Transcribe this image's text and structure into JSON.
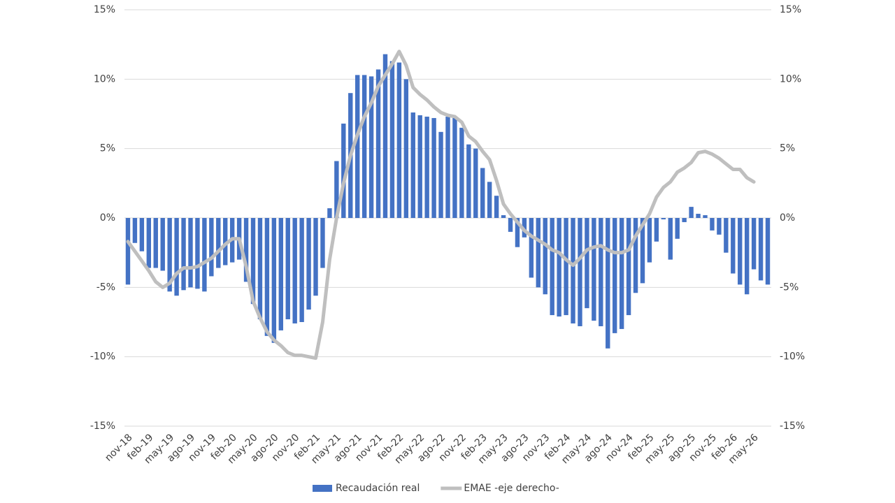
{
  "chart_data": {
    "type": "bar_line",
    "categories": [
      "nov-18",
      null,
      null,
      "feb-19",
      null,
      null,
      "may-19",
      null,
      null,
      "ago-19",
      null,
      null,
      "nov-19",
      null,
      null,
      "feb-20",
      null,
      null,
      "may-20",
      null,
      null,
      "ago-20",
      null,
      null,
      "nov-20",
      null,
      null,
      "feb-21",
      null,
      null,
      "may-21",
      null,
      null,
      "ago-21",
      null,
      null,
      "nov-21",
      null,
      null,
      "feb-22",
      null,
      null,
      "may-22",
      null,
      null,
      "ago-22",
      null,
      null,
      "nov-22",
      null,
      null,
      "feb-23",
      null,
      null,
      "may-23",
      null,
      null,
      "ago-23",
      null,
      null,
      "nov-23",
      null,
      null,
      "feb-24",
      null,
      null,
      "may-24",
      null,
      null,
      "ago-24",
      null,
      null,
      "nov-24",
      null,
      null,
      "feb-25",
      null,
      null,
      "may-25",
      null,
      null,
      "ago-25",
      null,
      null,
      "nov-25",
      null,
      null,
      "feb-26",
      null,
      null,
      "may-26",
      null,
      null
    ],
    "series": [
      {
        "name": "Recaudación real",
        "color": "#4472c4",
        "kind": "bar",
        "values": [
          -4.8,
          -1.8,
          -2.4,
          -3.6,
          -3.6,
          -3.8,
          -5.3,
          -5.6,
          -5.2,
          -5.0,
          -5.1,
          -5.3,
          -4.2,
          -3.6,
          -3.4,
          -3.2,
          -3.0,
          -4.6,
          -6.2,
          -7.3,
          -8.5,
          -9.0,
          -8.1,
          -7.3,
          -7.6,
          -7.5,
          -6.6,
          -5.6,
          -3.6,
          0.7,
          4.1,
          6.8,
          9.0,
          10.3,
          10.3,
          10.2,
          10.7,
          11.8,
          11.3,
          11.2,
          10.0,
          7.6,
          7.4,
          7.3,
          7.2,
          6.2,
          7.3,
          7.2,
          6.5,
          5.3,
          5.0,
          3.6,
          2.6,
          1.6,
          0.2,
          -1.0,
          -2.1,
          -1.4,
          -4.3,
          -5.0,
          -5.5,
          -7.0,
          -7.1,
          -7.0,
          -7.6,
          -7.8,
          -6.5,
          -7.4,
          -7.8,
          -9.4,
          -8.3,
          -8.0,
          -7.0,
          -5.4,
          -4.7,
          -3.2,
          -1.7,
          -0.1,
          -3.0,
          -1.5,
          -0.3,
          0.8,
          0.3,
          0.2,
          -0.9,
          -1.2,
          -2.5,
          -4.0,
          -4.8,
          -5.5,
          -3.7,
          -4.5,
          -4.8
        ]
      },
      {
        "name": "EMAE -eje derecho-",
        "color": "#bfbfbf",
        "kind": "line",
        "axis": "y2",
        "values": [
          -1.7,
          -2.4,
          -3.1,
          -3.8,
          -4.6,
          -5.0,
          -4.7,
          -4.0,
          -3.6,
          -3.6,
          -3.5,
          -3.2,
          -2.9,
          -2.4,
          -1.9,
          -1.5,
          -1.5,
          -3.5,
          -6.0,
          -7.2,
          -8.2,
          -8.8,
          -9.2,
          -9.7,
          -9.9,
          -9.9,
          -10.0,
          -10.1,
          -7.5,
          -3.0,
          0.0,
          2.5,
          4.5,
          6.0,
          7.3,
          8.3,
          9.5,
          10.3,
          11.1,
          12.0,
          11.0,
          9.4,
          8.9,
          8.5,
          8.0,
          7.6,
          7.4,
          7.3,
          6.9,
          5.9,
          5.5,
          4.8,
          4.2,
          2.7,
          1.0,
          0.3,
          -0.3,
          -0.9,
          -1.3,
          -1.6,
          -1.9,
          -2.3,
          -2.5,
          -3.0,
          -3.4,
          -2.9,
          -2.3,
          -2.1,
          -2.0,
          -2.3,
          -2.5,
          -2.5,
          -2.3,
          -1.3,
          -0.5,
          0.3,
          1.5,
          2.2,
          2.6,
          3.3,
          3.6,
          4.0,
          4.7,
          4.8,
          4.6,
          4.3,
          3.9,
          3.5,
          3.5,
          2.9,
          2.6,
          null,
          null
        ]
      }
    ],
    "ylim": [
      -15,
      15
    ],
    "yticks": [
      {
        "value": -15,
        "label": "-15%"
      },
      {
        "value": -10,
        "label": "-10%"
      },
      {
        "value": -5,
        "label": "-5%"
      },
      {
        "value": 0,
        "label": "0%"
      },
      {
        "value": 5,
        "label": "5%"
      },
      {
        "value": 10,
        "label": "10%"
      },
      {
        "value": 15,
        "label": "15%"
      }
    ],
    "y2lim": [
      -15,
      15
    ],
    "y2ticks": [
      {
        "value": -15,
        "label": "-15%"
      },
      {
        "value": -10,
        "label": "-10%"
      },
      {
        "value": -5,
        "label": "-5%"
      },
      {
        "value": 0,
        "label": "0%"
      },
      {
        "value": 5,
        "label": "5%"
      },
      {
        "value": 10,
        "label": "10%"
      },
      {
        "value": 15,
        "label": "15%"
      }
    ],
    "grid": true,
    "legend": "bottom"
  }
}
